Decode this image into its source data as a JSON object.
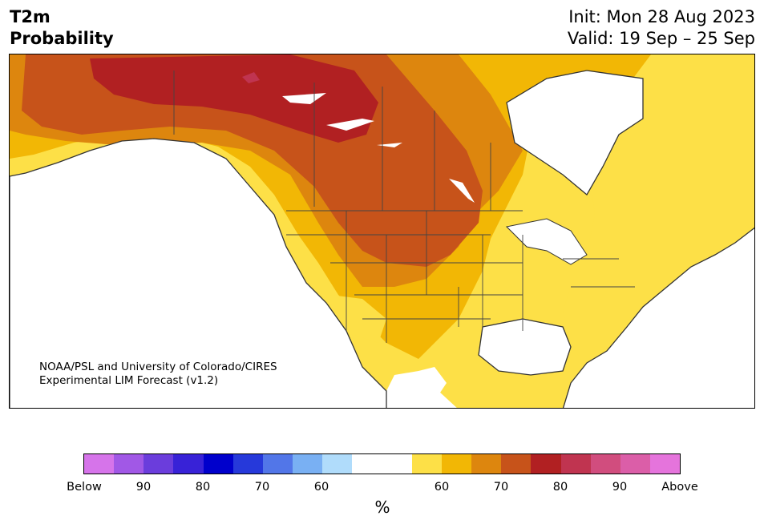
{
  "title": {
    "variable": "T2m",
    "product": "Probability",
    "init": "Init: Mon 28 Aug 2023",
    "valid": "Valid: 19 Sep – 25 Sep"
  },
  "credit": {
    "line1": "NOAA/PSL and University of Colorado/CIRES",
    "line2": "Experimental LIM Forecast (v1.2)"
  },
  "colorbar": {
    "colors": [
      "#d674ea",
      "#a158e6",
      "#6b3ddc",
      "#3822d7",
      "#0000cc",
      "#2639da",
      "#5276e8",
      "#79b0f3",
      "#b0dcfb",
      "#ffffff",
      "#ffffff",
      "#fde047",
      "#f2b705",
      "#dd860e",
      "#c7531a",
      "#b12022",
      "#c03450",
      "#d14d7e",
      "#db5ea8",
      "#e574dc"
    ],
    "ticks": [
      "Below",
      "90",
      "80",
      "70",
      "60",
      "60",
      "70",
      "80",
      "90",
      "Above"
    ],
    "unit": "%"
  },
  "map": {
    "region": "North America",
    "fill_colors": {
      "ocean": "#ffffff",
      "p60": "#fde047",
      "p65": "#f2b705",
      "p70": "#dd860e",
      "p75": "#c7531a",
      "p80": "#b12022",
      "p85": "#c03450"
    }
  }
}
